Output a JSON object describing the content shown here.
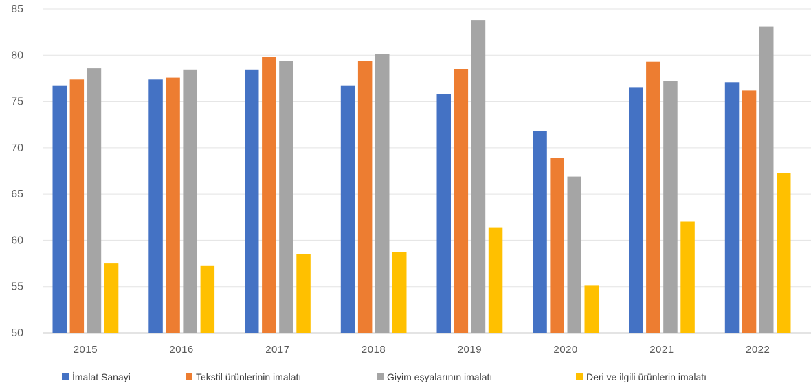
{
  "chart_data": {
    "type": "bar",
    "title": "",
    "xlabel": "",
    "ylabel": "",
    "categories": [
      "2015",
      "2016",
      "2017",
      "2018",
      "2019",
      "2020",
      "2021",
      "2022"
    ],
    "ylim": [
      50,
      85
    ],
    "yticks": [
      "50",
      "55",
      "60",
      "65",
      "70",
      "75",
      "80",
      "85"
    ],
    "grid": true,
    "legend_position": "bottom",
    "series": [
      {
        "name": "İmalat Sanayi",
        "color": "#4472C4",
        "values": [
          76.7,
          77.4,
          78.4,
          76.7,
          75.8,
          71.8,
          76.5,
          77.1
        ]
      },
      {
        "name": "Tekstil ürünlerinin imalatı",
        "color": "#ED7D31",
        "values": [
          77.4,
          77.6,
          79.8,
          79.4,
          78.5,
          68.9,
          79.3,
          76.2
        ]
      },
      {
        "name": "Giyim eşyalarının imalatı",
        "color": "#A5A5A5",
        "values": [
          78.6,
          78.4,
          79.4,
          80.1,
          83.8,
          66.9,
          77.2,
          83.1
        ]
      },
      {
        "name": "Deri ve ilgili ürünlerin imalatı",
        "color": "#FFC000",
        "values": [
          57.5,
          57.3,
          58.5,
          58.7,
          61.4,
          55.1,
          62.0,
          67.3
        ]
      }
    ]
  }
}
